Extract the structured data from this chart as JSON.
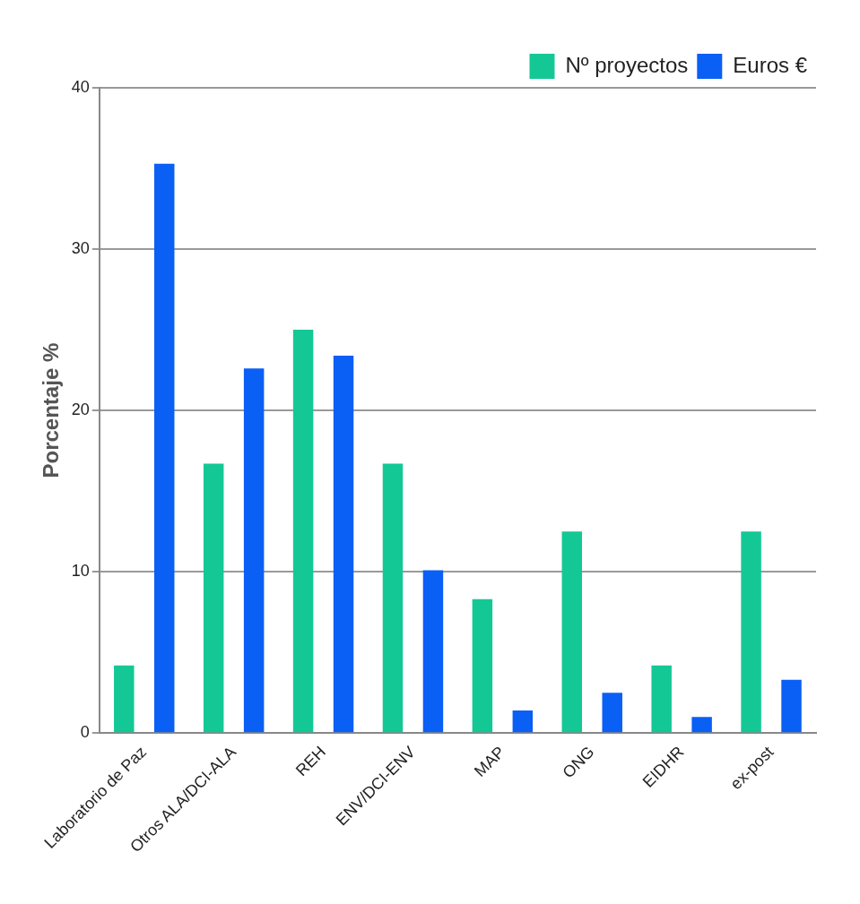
{
  "chart_data": {
    "type": "bar",
    "ylabel": "Porcentaje %",
    "categories": [
      "Laboratorio de Paz",
      "Otros ALA/DCI-ALA",
      "REH",
      "ENV/DCI-ENV",
      "MAP",
      "ONG",
      "EIDHR",
      "ex-post"
    ],
    "series": [
      {
        "name": "Nº proyectos",
        "color": "#14c896",
        "values": [
          4.2,
          16.7,
          25,
          16.7,
          8.3,
          12.5,
          4.2,
          12.5
        ]
      },
      {
        "name": "Euros €",
        "color": "#0a5ff5",
        "values": [
          35.3,
          22.6,
          23.4,
          10.1,
          1.4,
          2.5,
          1.0,
          3.3
        ]
      }
    ],
    "ylim": [
      0,
      40
    ],
    "yticks": [
      0,
      10,
      20,
      30,
      40
    ],
    "grid": "y",
    "legend": "top right"
  }
}
